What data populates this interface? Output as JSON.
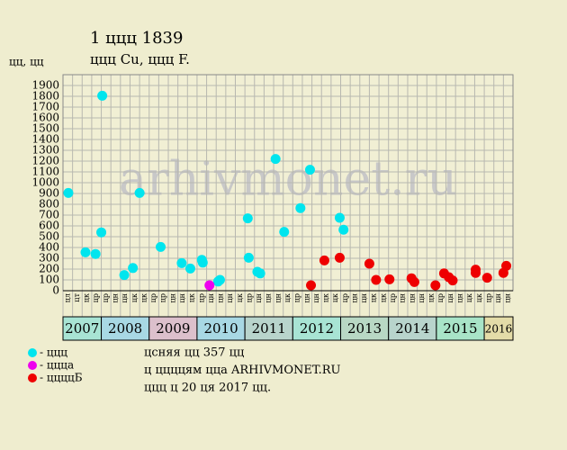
{
  "chart_data": {
    "type": "scatter",
    "title": "1 ццц 1839",
    "subtitle": "ццц Cu, ццц F.",
    "y_label": "цц, цц",
    "watermark": "arhivmonet.ru",
    "ylim": [
      0,
      2000
    ],
    "yticks": [
      0,
      100,
      200,
      300,
      400,
      500,
      600,
      700,
      800,
      900,
      1000,
      1100,
      1200,
      1300,
      1400,
      1500,
      1600,
      1700,
      1800,
      1900
    ],
    "xlim": [
      0,
      47
    ],
    "grid": true,
    "categories": [
      "цл",
      "цт",
      "цк",
      "цр",
      "цр",
      "цн",
      "цн",
      "цк",
      "цк",
      "цр",
      "цр",
      "цн",
      "цн",
      "цк",
      "цр",
      "цн",
      "цн",
      "цн",
      "цк",
      "цр",
      "цн",
      "цн",
      "цн",
      "цк",
      "цр",
      "цн",
      "цн",
      "цк",
      "цк",
      "цр",
      "цн",
      "цн",
      "цк",
      "цк",
      "цр",
      "цн",
      "цн",
      "цн",
      "цк",
      "цр",
      "цн",
      "цн",
      "цк",
      "цк",
      "цр",
      "цн",
      "цн"
    ],
    "years": [
      {
        "label": "2007",
        "from": 0,
        "to": 4,
        "color": "#a8e4d4"
      },
      {
        "label": "2008",
        "from": 4,
        "to": 9,
        "color": "#a8d8e4"
      },
      {
        "label": "2009",
        "from": 9,
        "to": 14,
        "color": "#dcc0cc"
      },
      {
        "label": "2010",
        "from": 14,
        "to": 19,
        "color": "#a8d8e4"
      },
      {
        "label": "2011",
        "from": 19,
        "to": 24,
        "color": "#b8d4cc"
      },
      {
        "label": "2012",
        "from": 24,
        "to": 29,
        "color": "#a8e4d4"
      },
      {
        "label": "2013",
        "from": 29,
        "to": 34,
        "color": "#b8d8c4"
      },
      {
        "label": "2014",
        "from": 34,
        "to": 39,
        "color": "#b8d4cc"
      },
      {
        "label": "2015",
        "from": 39,
        "to": 44,
        "color": "#a8e4c8"
      },
      {
        "label": "2016",
        "from": 44,
        "to": 47,
        "color": "#e4dca8"
      }
    ],
    "series": [
      {
        "name": "- ццц",
        "color": "#00e5ee",
        "x": [
          0.56,
          2.35,
          3.4,
          4.0,
          4.1,
          6.4,
          7.3,
          8.0,
          10.2,
          12.4,
          13.3,
          14.5,
          14.6,
          16.2,
          16.4,
          19.3,
          19.4,
          20.3,
          20.6,
          22.2,
          23.1,
          24.8,
          25.8,
          28.9,
          29.3
        ],
        "values": [
          905,
          355,
          340,
          540,
          1805,
          145,
          210,
          905,
          405,
          255,
          205,
          285,
          260,
          85,
          100,
          670,
          305,
          175,
          160,
          1220,
          545,
          765,
          1120,
          675,
          565
        ]
      },
      {
        "name": "- ццца",
        "color": "#ee00ee",
        "x": [
          15.3
        ],
        "values": [
          50
        ]
      },
      {
        "name": "- ццццБ",
        "color": "#ee0000",
        "x": [
          25.9,
          27.3,
          28.9,
          32.0,
          32.7,
          34.1,
          36.4,
          36.7,
          38.9,
          39.8,
          40.3,
          40.7,
          43.1,
          43.1,
          44.3,
          46.0,
          46.3
        ],
        "values": [
          50,
          280,
          305,
          250,
          100,
          105,
          115,
          80,
          50,
          160,
          125,
          95,
          195,
          165,
          120,
          165,
          230
        ]
      }
    ],
    "footer": [
      "цcняя цц 357 цц",
      "ц ццццям цца ARHIVMONET.RU",
      "ццц ц 20 ця 2017 цц."
    ]
  }
}
